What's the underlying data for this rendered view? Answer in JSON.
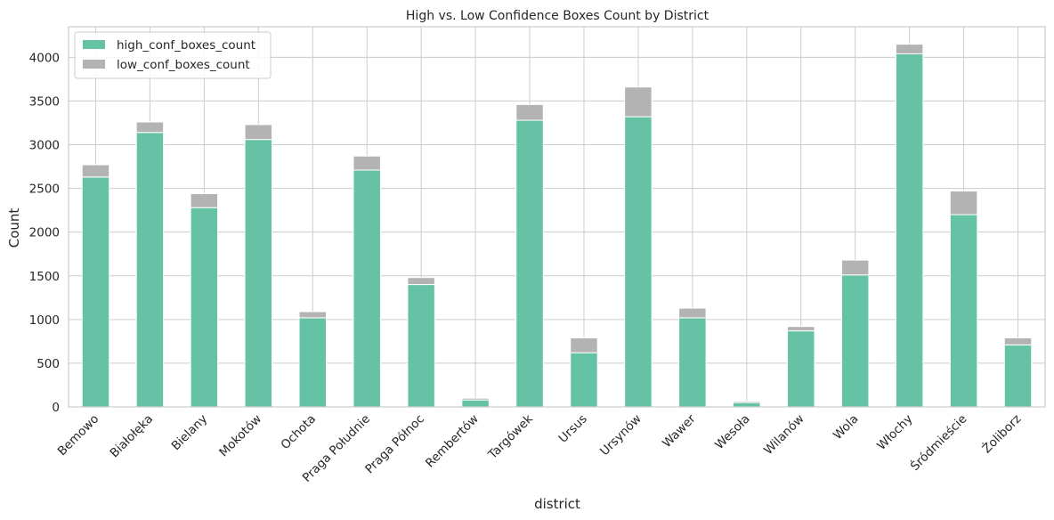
{
  "chart_data": {
    "type": "bar",
    "stacked": true,
    "title": "High vs. Low Confidence Boxes Count by District",
    "xlabel": "district",
    "ylabel": "Count",
    "ylim": [
      0,
      4350
    ],
    "yticks": [
      0,
      500,
      1000,
      1500,
      2000,
      2500,
      3000,
      3500,
      4000
    ],
    "grid": true,
    "legend_position": "top-left",
    "categories": [
      "Bemowo",
      "Białołęka",
      "Bielany",
      "Mokotów",
      "Ochota",
      "Praga Południe",
      "Praga Północ",
      "Rembertów",
      "Targówek",
      "Ursus",
      "Ursynów",
      "Wawer",
      "Wesoła",
      "Wilanów",
      "Wola",
      "Włochy",
      "Śródmieście",
      "Żoliborz"
    ],
    "series": [
      {
        "name": "high_conf_boxes_count",
        "color": "#66c2a5",
        "values": [
          2630,
          3140,
          2280,
          3060,
          1020,
          2710,
          1400,
          80,
          3280,
          620,
          3320,
          1020,
          50,
          870,
          1510,
          4040,
          2200,
          710
        ]
      },
      {
        "name": "low_conf_boxes_count",
        "color": "#b3b3b3",
        "values": [
          140,
          120,
          160,
          170,
          70,
          160,
          80,
          20,
          180,
          170,
          340,
          110,
          15,
          50,
          170,
          110,
          270,
          80
        ]
      }
    ]
  }
}
